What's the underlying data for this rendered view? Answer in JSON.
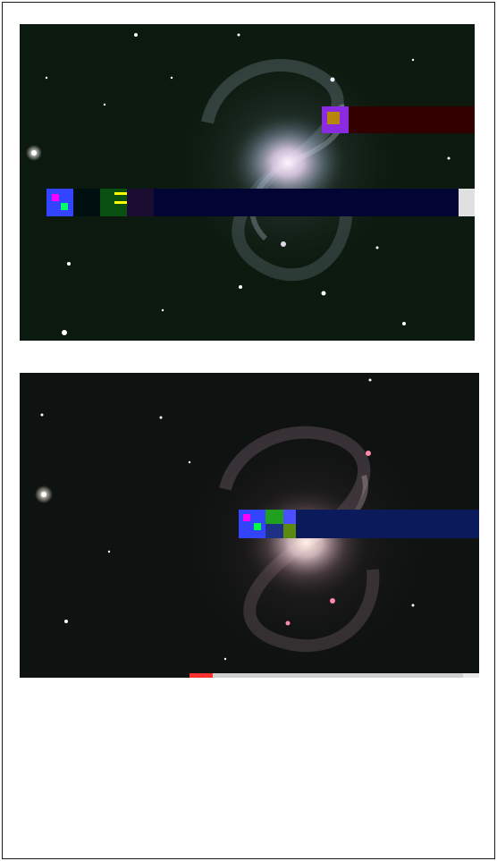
{
  "document": {
    "images": [
      {
        "name": "spiral-galaxy-photo-green",
        "palette": {
          "sky": "#0d1a0f",
          "core": "#f2e4f6",
          "arms": "#c8d0e4"
        }
      },
      {
        "name": "spiral-galaxy-photo-warm",
        "palette": {
          "sky": "#0f1210",
          "core": "#ffe9d8",
          "arms": "#d8b8c8"
        }
      }
    ],
    "artifacts": {
      "glitch_colors": [
        "#ff00ff",
        "#00ff00",
        "#0000ff",
        "#ff0000",
        "#ffff00",
        "#000033",
        "#330000"
      ]
    }
  }
}
